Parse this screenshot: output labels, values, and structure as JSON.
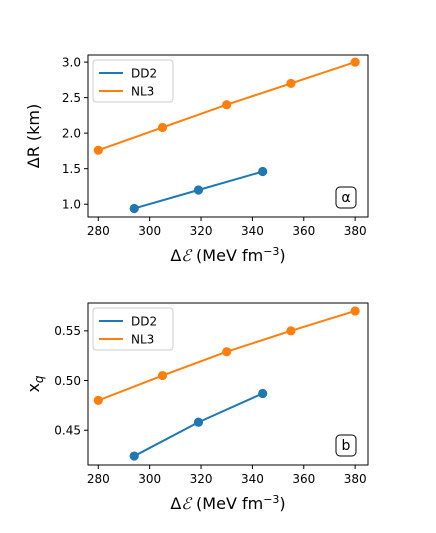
{
  "chart_data": [
    {
      "type": "line",
      "panel_label": "α",
      "xlabel_prefix": "Δ",
      "xlabel_symbol": "ℰ",
      "xlabel_unit": " (MeV fm",
      "xlabel_exp": "−3",
      "xlabel_close": ")",
      "ylabel_main": "ΔR (km)",
      "xlim": [
        276,
        385
      ],
      "ylim": [
        0.82,
        3.1
      ],
      "xticks": [
        280,
        300,
        320,
        340,
        360,
        380
      ],
      "yticks": [
        1.0,
        1.5,
        2.0,
        2.5,
        3.0
      ],
      "ytick_labels": [
        "1.0",
        "1.5",
        "2.0",
        "2.5",
        "3.0"
      ],
      "legend": "top-left",
      "grid": false,
      "series": [
        {
          "name": "DD2",
          "color": "#1f77b4",
          "x": [
            294,
            319,
            344
          ],
          "y": [
            0.94,
            1.2,
            1.46
          ]
        },
        {
          "name": "NL3",
          "color": "#ff7f0e",
          "x": [
            280,
            305,
            330,
            355,
            380
          ],
          "y": [
            1.76,
            2.08,
            2.4,
            2.7,
            3.0
          ]
        }
      ]
    },
    {
      "type": "line",
      "panel_label": "b",
      "xlabel_prefix": "Δ",
      "xlabel_symbol": "ℰ",
      "xlabel_unit": " (MeV fm",
      "xlabel_exp": "−3",
      "xlabel_close": ")",
      "ylabel_main": "x",
      "ylabel_sub": "q",
      "xlim": [
        276,
        385
      ],
      "ylim": [
        0.415,
        0.578
      ],
      "xticks": [
        280,
        300,
        320,
        340,
        360,
        380
      ],
      "yticks": [
        0.45,
        0.5,
        0.55
      ],
      "ytick_labels": [
        "0.45",
        "0.50",
        "0.55"
      ],
      "legend": "top-left",
      "grid": false,
      "series": [
        {
          "name": "DD2",
          "color": "#1f77b4",
          "x": [
            294,
            319,
            344
          ],
          "y": [
            0.424,
            0.458,
            0.487
          ]
        },
        {
          "name": "NL3",
          "color": "#ff7f0e",
          "x": [
            280,
            305,
            330,
            355,
            380
          ],
          "y": [
            0.48,
            0.505,
            0.529,
            0.55,
            0.57
          ]
        }
      ]
    }
  ]
}
